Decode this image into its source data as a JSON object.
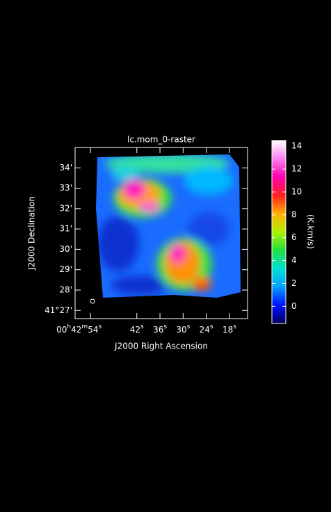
{
  "chart_data": {
    "type": "image",
    "title": "lc.mom_0-raster",
    "xlabel": "J2000 Right Ascension",
    "ylabel": "J2000 Declination",
    "colorbar_label": "(K.km/s)",
    "xlim": [
      58.0,
      13.3
    ],
    "xticks": [
      {
        "value": 54,
        "label": "00h42m54s"
      },
      {
        "value": 42,
        "label": "42s"
      },
      {
        "value": 36,
        "label": "36s"
      },
      {
        "value": 30,
        "label": "30s"
      },
      {
        "value": 24,
        "label": "24s"
      },
      {
        "value": 18,
        "label": "18s"
      }
    ],
    "ylim": [
      26.6,
      35.0
    ],
    "yticks": [
      {
        "value": 27,
        "label": "41°27'"
      },
      {
        "value": 28,
        "label": "28'"
      },
      {
        "value": 29,
        "label": "29'"
      },
      {
        "value": 30,
        "label": "30'"
      },
      {
        "value": 31,
        "label": "31'"
      },
      {
        "value": 32,
        "label": "32'"
      },
      {
        "value": 33,
        "label": "33'"
      },
      {
        "value": 34,
        "label": "34'"
      }
    ],
    "clim": [
      -1.5,
      14.5
    ],
    "cticks": [
      0,
      2,
      4,
      6,
      8,
      10,
      12,
      14
    ],
    "colormap": [
      "#000060",
      "#0010ff",
      "#00a0ff",
      "#00e0d0",
      "#20e040",
      "#b0f000",
      "#ffb000",
      "#ff2020",
      "#ff00b0",
      "#ff80f0",
      "#ffffff"
    ]
  }
}
